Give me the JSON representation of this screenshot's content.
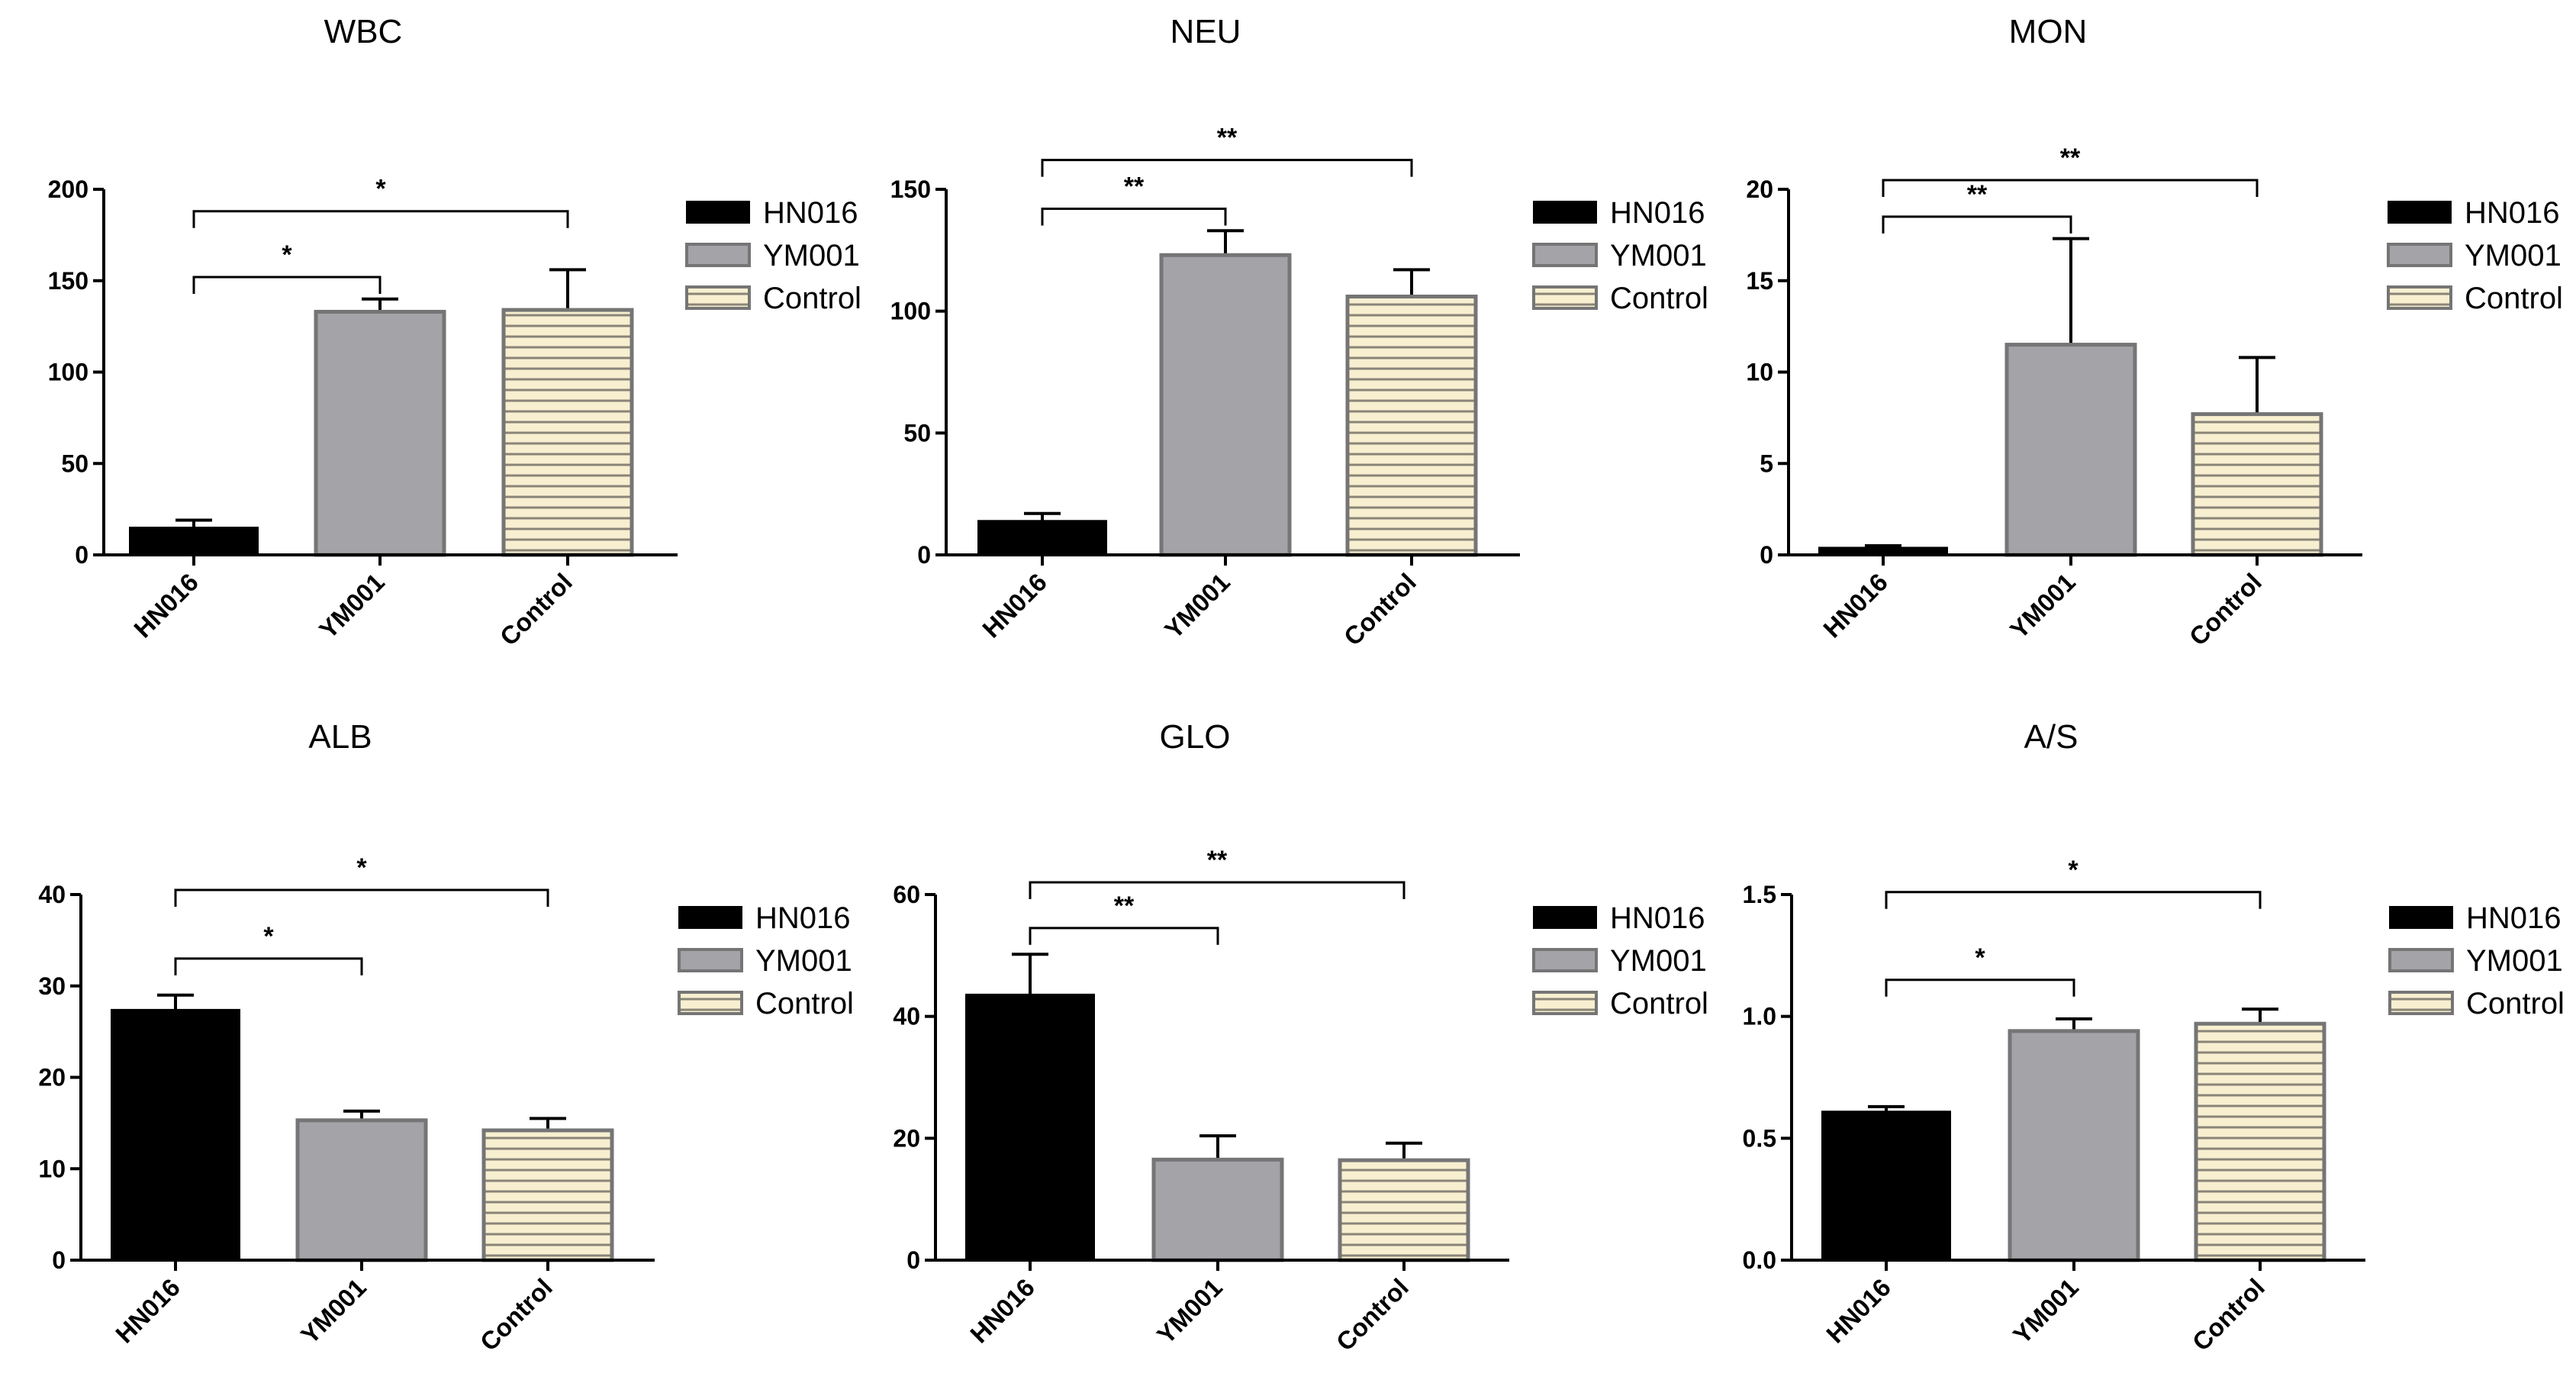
{
  "colors": {
    "HN016": "#000000",
    "YM001": "#a3a3a8",
    "Control": "#f7efd0",
    "control_stripe": "#8a8478",
    "bar_outline": "#757575"
  },
  "legend": {
    "entries": [
      "HN016",
      "YM001",
      "Control"
    ]
  },
  "chart_data": [
    {
      "type": "bar",
      "title": "WBC",
      "categories": [
        "HN016",
        "YM001",
        "Control"
      ],
      "values": [
        15,
        133,
        134
      ],
      "errors": [
        4,
        7,
        22
      ],
      "ylim": [
        0,
        200
      ],
      "yticks": [
        0,
        50,
        100,
        150,
        200
      ],
      "ytick_labels": [
        "0",
        "50",
        "100",
        "150",
        "200"
      ],
      "significance": [
        {
          "from": 0,
          "to": 1,
          "label": "*",
          "level": 152
        },
        {
          "from": 0,
          "to": 2,
          "label": "*",
          "level": 188
        }
      ]
    },
    {
      "type": "bar",
      "title": "NEU",
      "categories": [
        "HN016",
        "YM001",
        "Control"
      ],
      "values": [
        14,
        123,
        106
      ],
      "errors": [
        3,
        10,
        11
      ],
      "ylim": [
        0,
        150
      ],
      "yticks": [
        0,
        50,
        100,
        150
      ],
      "ytick_labels": [
        "0",
        "50",
        "100",
        "150"
      ],
      "significance": [
        {
          "from": 0,
          "to": 1,
          "label": "**",
          "level": 142
        },
        {
          "from": 0,
          "to": 2,
          "label": "**",
          "level": 162
        }
      ]
    },
    {
      "type": "bar",
      "title": "MON",
      "categories": [
        "HN016",
        "YM001",
        "Control"
      ],
      "values": [
        0.4,
        11.5,
        7.7
      ],
      "errors": [
        0.1,
        5.8,
        3.1
      ],
      "ylim": [
        0,
        20
      ],
      "yticks": [
        0,
        5,
        10,
        15,
        20
      ],
      "ytick_labels": [
        "0",
        "5",
        "10",
        "15",
        "20"
      ],
      "significance": [
        {
          "from": 0,
          "to": 1,
          "label": "**",
          "level": 18.5
        },
        {
          "from": 0,
          "to": 2,
          "label": "**",
          "level": 20.5
        }
      ]
    },
    {
      "type": "bar",
      "title": "ALB",
      "categories": [
        "HN016",
        "YM001",
        "Control"
      ],
      "values": [
        27.4,
        15.3,
        14.2
      ],
      "errors": [
        1.6,
        1.0,
        1.3
      ],
      "ylim": [
        0,
        40
      ],
      "yticks": [
        0,
        10,
        20,
        30,
        40
      ],
      "ytick_labels": [
        "0",
        "10",
        "20",
        "30",
        "40"
      ],
      "significance": [
        {
          "from": 0,
          "to": 1,
          "label": "*",
          "level": 33
        },
        {
          "from": 0,
          "to": 2,
          "label": "*",
          "level": 40.5
        }
      ]
    },
    {
      "type": "bar",
      "title": "GLO",
      "categories": [
        "HN016",
        "YM001",
        "Control"
      ],
      "values": [
        43.6,
        16.5,
        16.4
      ],
      "errors": [
        6.6,
        3.9,
        2.8
      ],
      "ylim": [
        0,
        60
      ],
      "yticks": [
        0,
        20,
        40,
        60
      ],
      "ytick_labels": [
        "0",
        "20",
        "40",
        "60"
      ],
      "significance": [
        {
          "from": 0,
          "to": 1,
          "label": "**",
          "level": 54.5
        },
        {
          "from": 0,
          "to": 2,
          "label": "**",
          "level": 62
        }
      ]
    },
    {
      "type": "bar",
      "title": "A/S",
      "categories": [
        "HN016",
        "YM001",
        "Control"
      ],
      "values": [
        0.61,
        0.94,
        0.97
      ],
      "errors": [
        0.02,
        0.05,
        0.06
      ],
      "ylim": [
        0,
        1.5
      ],
      "yticks": [
        0,
        0.5,
        1.0,
        1.5
      ],
      "ytick_labels": [
        "0.0",
        "0.5",
        "1.0",
        "1.5"
      ],
      "significance": [
        {
          "from": 0,
          "to": 1,
          "label": "*",
          "level": 1.15
        },
        {
          "from": 0,
          "to": 2,
          "label": "*",
          "level": 1.51
        }
      ]
    }
  ]
}
